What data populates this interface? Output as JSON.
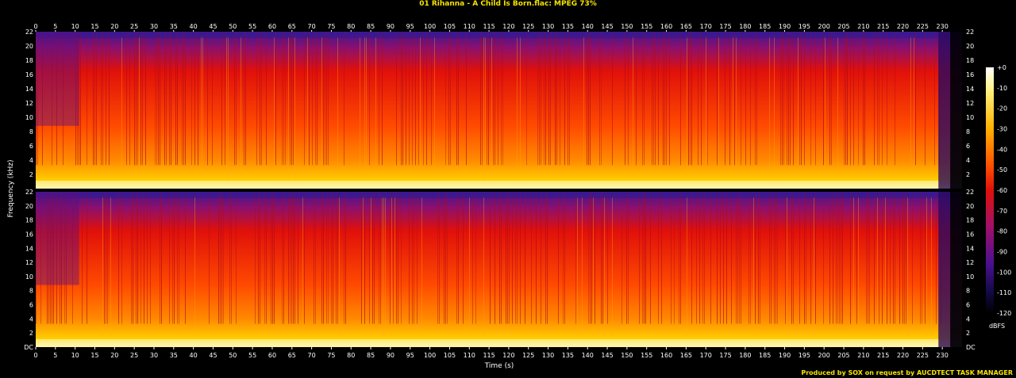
{
  "title": "01 Rihanna - A Child Is Born.flac: MPEG 73%",
  "footer": "Produced by SOX on request by AUCDTECT TASK MANAGER",
  "colors": {
    "title": "#f5e400",
    "background": "#000000"
  },
  "chart_data": {
    "type": "heatmap",
    "title": "01 Rihanna - A Child Is Born.flac: MPEG 73%",
    "xlabel": "Time (s)",
    "ylabel": "Frequency (kHz)",
    "xlim": [
      0,
      235
    ],
    "ylim": [
      0,
      22
    ],
    "x_ticks": [
      0,
      5,
      10,
      15,
      20,
      25,
      30,
      35,
      40,
      45,
      50,
      55,
      60,
      65,
      70,
      75,
      80,
      85,
      90,
      95,
      100,
      105,
      110,
      115,
      120,
      125,
      130,
      135,
      140,
      145,
      150,
      155,
      160,
      165,
      170,
      175,
      180,
      185,
      190,
      195,
      200,
      205,
      210,
      215,
      220,
      225,
      230
    ],
    "y_ticks": [
      2,
      4,
      6,
      8,
      10,
      12,
      14,
      16,
      18,
      20,
      22
    ],
    "y_bottom_label": "DC",
    "channels": 2,
    "colorbar": {
      "label": "dBFS",
      "ticks": [
        "+0",
        "-10",
        "-20",
        "-30",
        "-40",
        "-50",
        "-60",
        "-70",
        "-80",
        "-90",
        "-100",
        "-110",
        "-120"
      ],
      "range_db": [
        -120,
        0
      ]
    }
  }
}
